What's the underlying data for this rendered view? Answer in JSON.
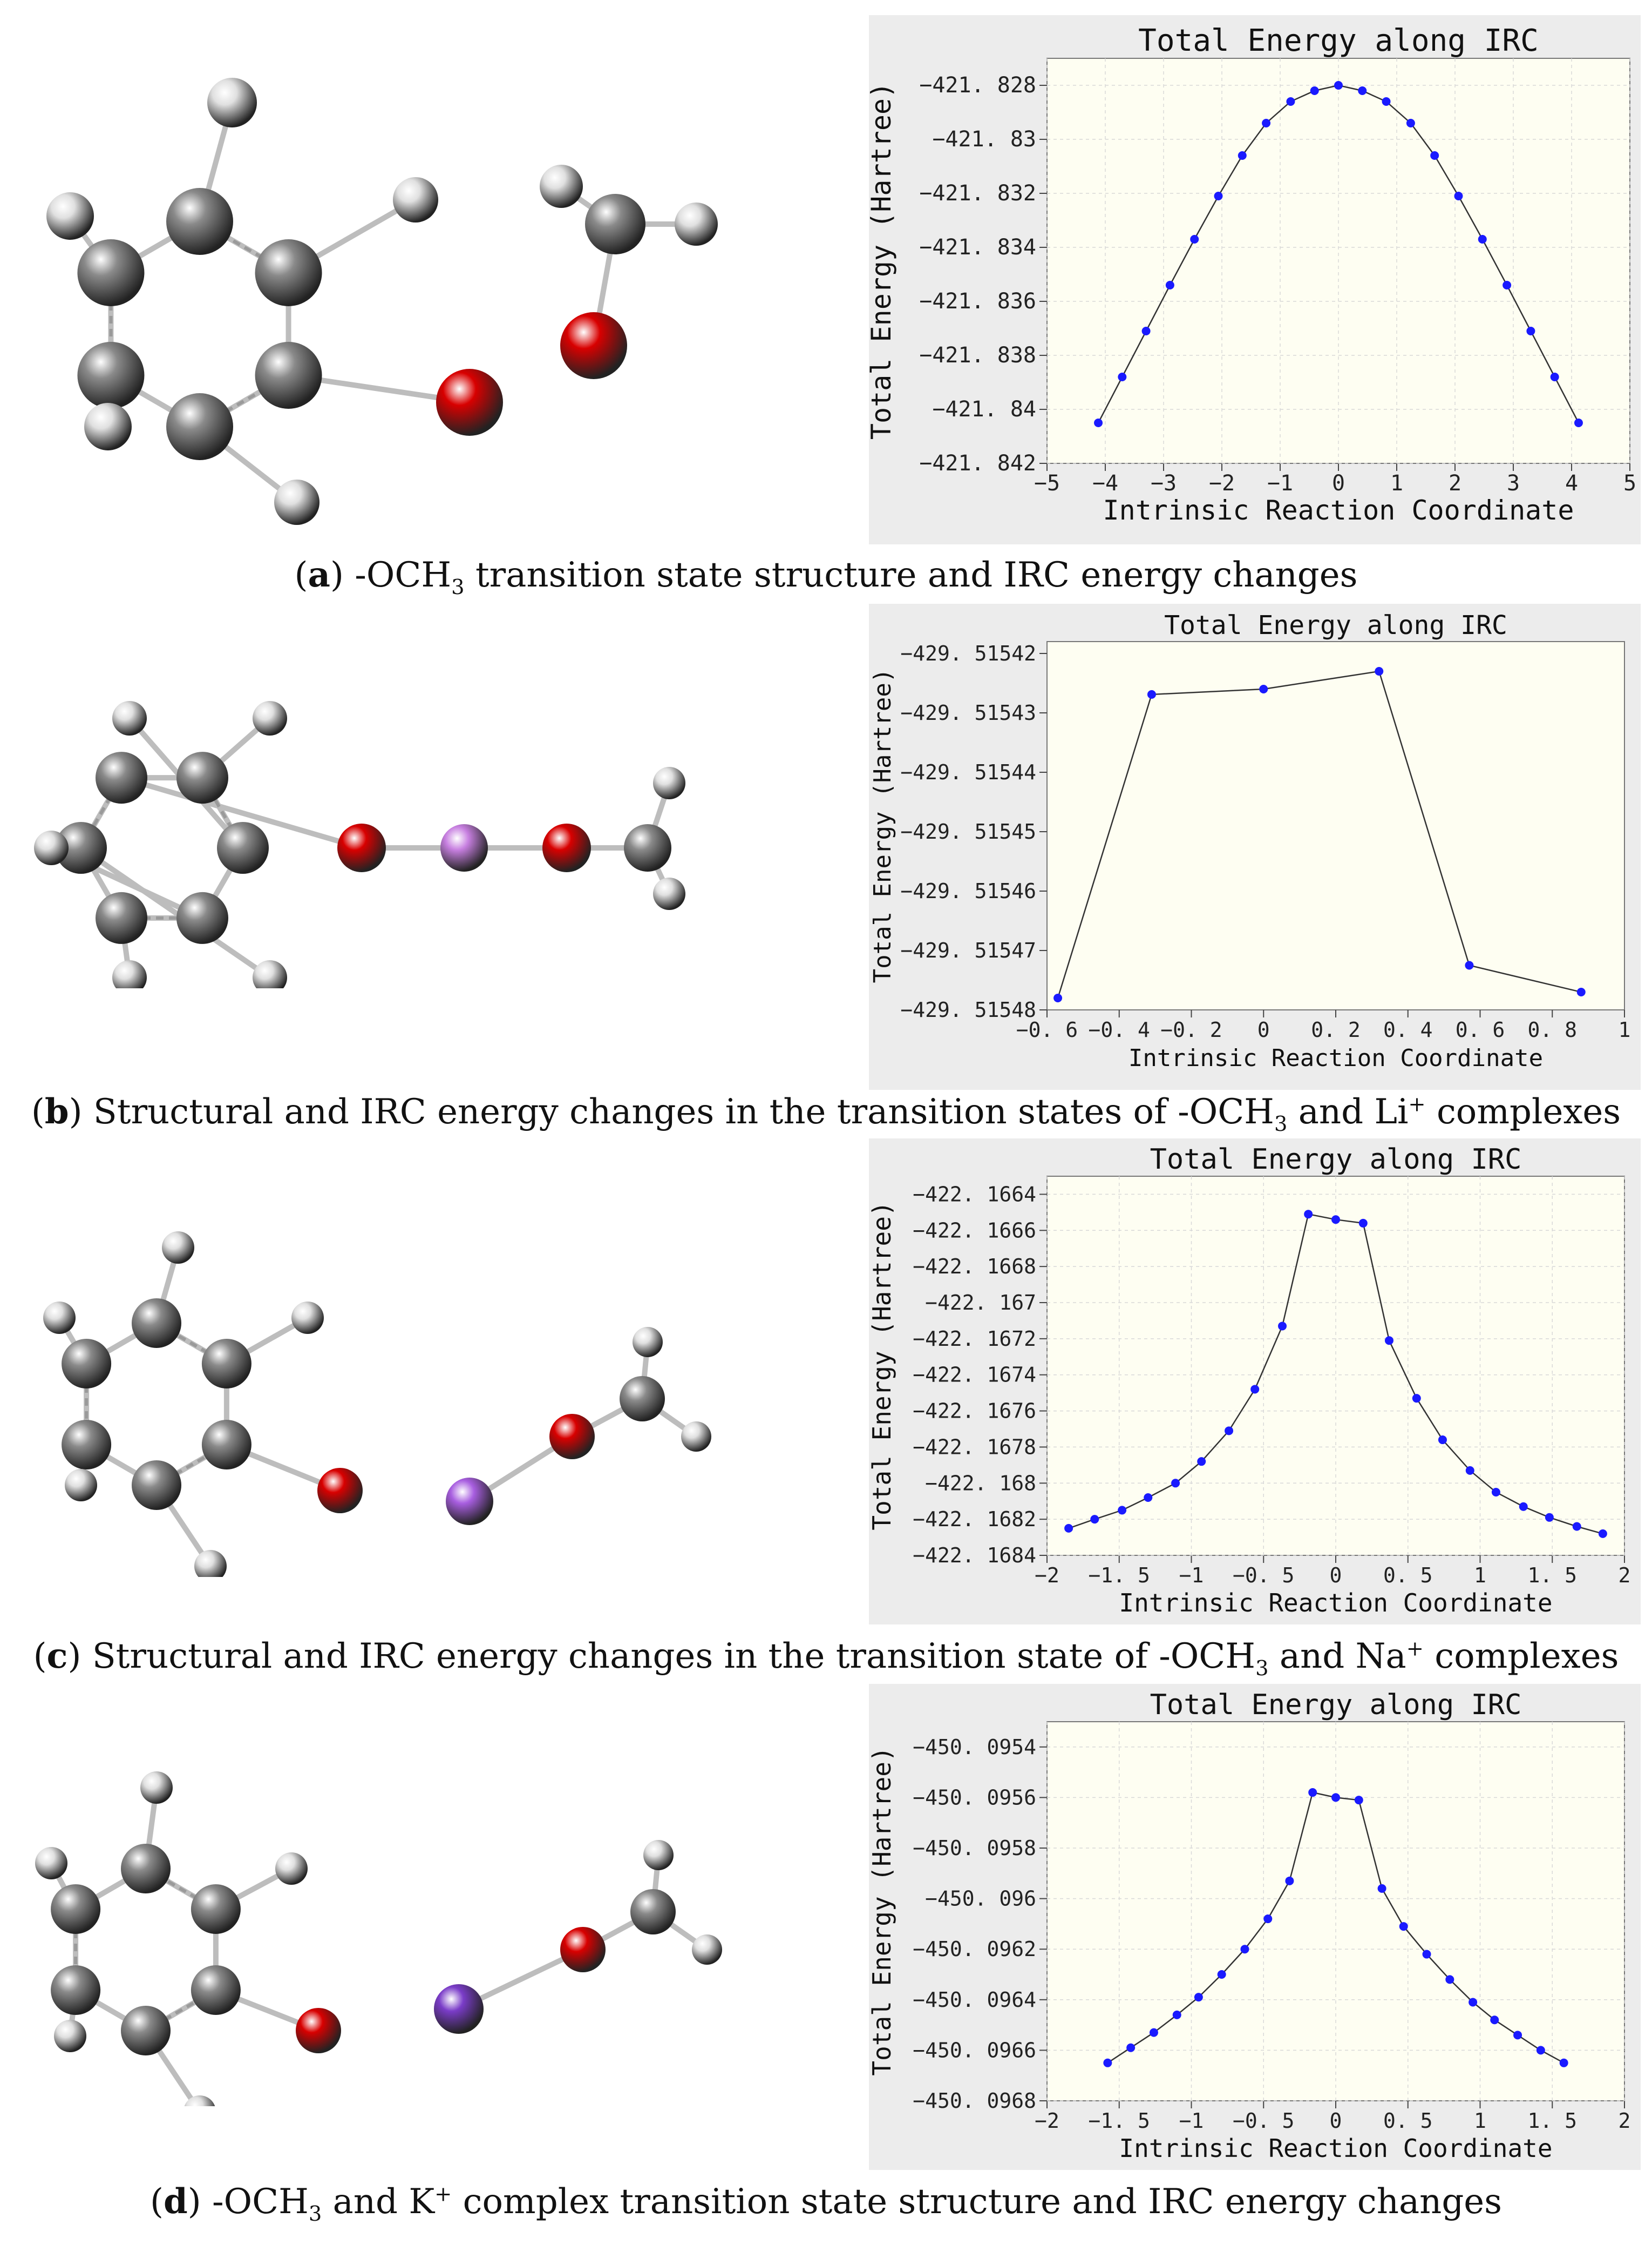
{
  "panels": [
    {
      "id": "a",
      "caption": {
        "letter": "a",
        "pre": "-OCH",
        "sub": "3",
        "post": " transition state structure and IRC energy changes"
      },
      "chart": {
        "type": "line",
        "title": "Total Energy along IRC",
        "ylabel": "Total Energy  (Hartree)",
        "xlabel": "Intrinsic Reaction Coordinate",
        "xlim": [
          -5,
          5
        ],
        "ylim": [
          -421.842,
          -421.827
        ],
        "xticks": [
          -5,
          -4,
          -3,
          -2,
          -1,
          0,
          1,
          2,
          3,
          4,
          5
        ],
        "xtick_labels": [
          "−5",
          "−4",
          "−3",
          "−2",
          "−1",
          "0",
          "1",
          "2",
          "3",
          "4",
          "5"
        ],
        "yticks": [
          -421.828,
          -421.83,
          -421.832,
          -421.834,
          -421.836,
          -421.838,
          -421.84,
          -421.842
        ],
        "ytick_labels": [
          "−421. 828",
          "−421. 83",
          "−421. 832",
          "−421. 834",
          "−421. 836",
          "−421. 838",
          "−421. 84",
          "−421. 842"
        ],
        "x": [
          -4.12,
          -3.71,
          -3.3,
          -2.89,
          -2.47,
          -2.06,
          -1.65,
          -1.24,
          -0.82,
          -0.41,
          0,
          0.41,
          0.82,
          1.24,
          1.65,
          2.06,
          2.47,
          2.89,
          3.3,
          3.71,
          4.12
        ],
        "y": [
          -421.8405,
          -421.8388,
          -421.8371,
          -421.8354,
          -421.8337,
          -421.8321,
          -421.8306,
          -421.8294,
          -421.8286,
          -421.8282,
          -421.828,
          -421.8282,
          -421.8286,
          -421.8294,
          -421.8306,
          -421.8321,
          -421.8337,
          -421.8354,
          -421.8371,
          -421.8388,
          -421.8405
        ],
        "grid": true
      }
    },
    {
      "id": "b",
      "caption": {
        "letter": "b",
        "pre": " Structural and IRC energy changes in the transition states of -OCH",
        "sub": "3",
        "mid": " and Li",
        "sup": "+",
        "post": " complexes"
      },
      "chart": {
        "type": "line",
        "title": "Total Energy along IRC",
        "ylabel": "Total Energy (Hartree)",
        "xlabel": "Intrinsic Reaction Coordinate",
        "xlim": [
          -0.6,
          1
        ],
        "ylim": [
          -429.51548,
          -429.515418
        ],
        "xticks": [
          -0.6,
          -0.4,
          -0.2,
          0,
          0.2,
          0.4,
          0.6,
          0.8,
          1
        ],
        "xtick_labels": [
          "−0. 6",
          "−0. 4",
          "−0. 2",
          "0",
          "0. 2",
          "0. 4",
          "0. 6",
          "0. 8",
          "1"
        ],
        "yticks": [
          -429.51542,
          -429.51543,
          -429.51544,
          -429.51545,
          -429.51546,
          -429.51547,
          -429.51548
        ],
        "ytick_labels": [
          "−429. 51542",
          "−429. 51543",
          "−429. 51544",
          "−429. 51545",
          "−429. 51546",
          "−429. 51547",
          "−429. 51548"
        ],
        "x": [
          -0.57,
          -0.31,
          0,
          0.32,
          0.57,
          0.88
        ],
        "y": [
          -429.515478,
          -429.5154269,
          -429.515426,
          -429.515423,
          -429.5154725,
          -429.515477
        ],
        "grid": false
      }
    },
    {
      "id": "c",
      "caption": {
        "letter": "c",
        "pre": " Structural and IRC energy changes in the transition state of -OCH",
        "sub": "3",
        "mid": " and Na",
        "sup": "+",
        "post": " complexes"
      },
      "chart": {
        "type": "line",
        "title": "Total Energy along IRC",
        "ylabel": "Total Energy  (Hartree)",
        "xlabel": "Intrinsic Reaction Coordinate",
        "xlim": [
          -2,
          2
        ],
        "ylim": [
          -422.1684,
          -422.1663
        ],
        "xticks": [
          -2,
          -1.5,
          -1,
          -0.5,
          0,
          0.5,
          1,
          1.5,
          2
        ],
        "xtick_labels": [
          "−2",
          "−1. 5",
          "−1",
          "−0. 5",
          "0",
          "0. 5",
          "1",
          "1. 5",
          "2"
        ],
        "yticks": [
          -422.1664,
          -422.1666,
          -422.1668,
          -422.167,
          -422.1672,
          -422.1674,
          -422.1676,
          -422.1678,
          -422.168,
          -422.1682,
          -422.1684
        ],
        "ytick_labels": [
          "−422. 1664",
          "−422. 1666",
          "−422. 1668",
          "−422. 167",
          "−422. 1672",
          "−422. 1674",
          "−422. 1676",
          "−422. 1678",
          "−422. 168",
          "−422. 1682",
          "−422. 1684"
        ],
        "x": [
          -1.85,
          -1.67,
          -1.48,
          -1.3,
          -1.11,
          -0.93,
          -0.74,
          -0.56,
          -0.37,
          -0.19,
          0,
          0.19,
          0.37,
          0.56,
          0.74,
          0.93,
          1.11,
          1.3,
          1.48,
          1.67,
          1.85
        ],
        "y": [
          -422.16825,
          -422.1682,
          -422.16815,
          -422.16808,
          -422.168,
          -422.16788,
          -422.16771,
          -422.16748,
          -422.16713,
          -422.16651,
          -422.16654,
          -422.16656,
          -422.16721,
          -422.16753,
          -422.16776,
          -422.16793,
          -422.16805,
          -422.16813,
          -422.16819,
          -422.16824,
          -422.16828
        ],
        "grid": true
      }
    },
    {
      "id": "d",
      "caption": {
        "letter": "d",
        "pre": " -OCH",
        "sub": "3",
        "mid": " and K",
        "sup": "+",
        "post": " complex transition state structure and IRC energy changes"
      },
      "chart": {
        "type": "line",
        "title": "Total Energy along IRC",
        "ylabel": "Total Energy  (Hartree)",
        "xlabel": "Intrinsic Reaction Coordinate",
        "xlim": [
          -2,
          2
        ],
        "ylim": [
          -450.0968,
          -450.0953
        ],
        "xticks": [
          -2,
          -1.5,
          -1,
          -0.5,
          0,
          0.5,
          1,
          1.5,
          2
        ],
        "xtick_labels": [
          "−2",
          "−1. 5",
          "−1",
          "−0. 5",
          "0",
          "0. 5",
          "1",
          "1. 5",
          "2"
        ],
        "yticks": [
          -450.0954,
          -450.0956,
          -450.0958,
          -450.096,
          -450.0962,
          -450.0964,
          -450.0966,
          -450.0968
        ],
        "ytick_labels": [
          "−450. 0954",
          "−450. 0956",
          "−450. 0958",
          "−450. 096",
          "−450. 0962",
          "−450. 0964",
          "−450. 0966",
          "−450. 0968"
        ],
        "x": [
          -1.58,
          -1.42,
          -1.26,
          -1.1,
          -0.95,
          -0.79,
          -0.63,
          -0.47,
          -0.32,
          -0.16,
          0,
          0.16,
          0.32,
          0.47,
          0.63,
          0.79,
          0.95,
          1.1,
          1.26,
          1.42,
          1.58
        ],
        "y": [
          -450.09665,
          -450.09659,
          -450.09653,
          -450.09646,
          -450.09639,
          -450.0963,
          -450.0962,
          -450.09608,
          -450.09593,
          -450.09558,
          -450.0956,
          -450.09561,
          -450.09596,
          -450.09611,
          -450.09622,
          -450.09632,
          -450.09641,
          -450.09648,
          -450.09654,
          -450.0966,
          -450.09665
        ],
        "grid": true
      }
    }
  ],
  "colors": {
    "plot_bg": "#fefef2",
    "frame_bg": "#ececec",
    "line": "#333333",
    "marker": "#1a1aff",
    "grid": "#d8d8d8",
    "carbon": "#8a8a8a",
    "hydrogen": "#e0e0e0",
    "oxygen": "#d80000",
    "lithium": "#c77fe0",
    "sodium": "#a85ee0",
    "potassium": "#7a3cc8"
  }
}
